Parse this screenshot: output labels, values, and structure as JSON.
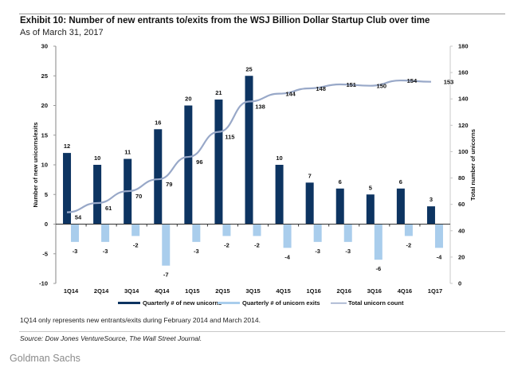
{
  "header": {
    "title": "Exhibit 10: Number of new entrants to/exits from the WSJ Billion Dollar Startup Club over time",
    "subtitle": "As of March 31, 2017"
  },
  "footer": {
    "note": "1Q14 only represents new entrants/exits during February 2014 and March 2014.",
    "source": "Source: Dow Jones VentureSource, The Wall Street Journal.",
    "brand": "Goldman Sachs"
  },
  "colors": {
    "new_unicorns": "#0d3461",
    "exits": "#a9cdec",
    "total_line": "#98a8c8",
    "axis": "#9a9a9a"
  },
  "chart_data": {
    "type": "bar",
    "title": "Exhibit 10: Number of new entrants to/exits from the WSJ Billion Dollar Startup Club over time",
    "subtitle": "As of March 31, 2017",
    "categories": [
      "1Q14",
      "2Q14",
      "3Q14",
      "4Q14",
      "1Q15",
      "2Q15",
      "3Q15",
      "4Q15",
      "1Q16",
      "2Q16",
      "3Q16",
      "4Q16",
      "1Q17"
    ],
    "series": [
      {
        "name": "Quarterly # of new unicorns",
        "type": "bar",
        "axis": "left",
        "values": [
          12,
          10,
          11,
          16,
          20,
          21,
          25,
          10,
          7,
          6,
          5,
          6,
          3
        ]
      },
      {
        "name": "Quarterly # of unicorn exits",
        "type": "bar",
        "axis": "left",
        "values": [
          -3,
          -3,
          -2,
          -7,
          -3,
          -2,
          -2,
          -4,
          -3,
          -3,
          -6,
          -2,
          -4
        ]
      },
      {
        "name": "Total unicorn count",
        "type": "line",
        "axis": "right",
        "values": [
          54,
          61,
          70,
          79,
          96,
          115,
          138,
          144,
          148,
          151,
          150,
          154,
          153
        ]
      }
    ],
    "ylabel": "Number of new unicorns/exits",
    "y2label": "Total number of unicorns",
    "xlabel": "",
    "ylim": [
      -10,
      30
    ],
    "y2lim": [
      0,
      180
    ],
    "yticks": [
      -10,
      -5,
      0,
      5,
      10,
      15,
      20,
      25,
      30
    ],
    "y2ticks": [
      0,
      20,
      40,
      60,
      80,
      100,
      120,
      140,
      160,
      180
    ],
    "grid": false,
    "legend": "bottom-center"
  }
}
